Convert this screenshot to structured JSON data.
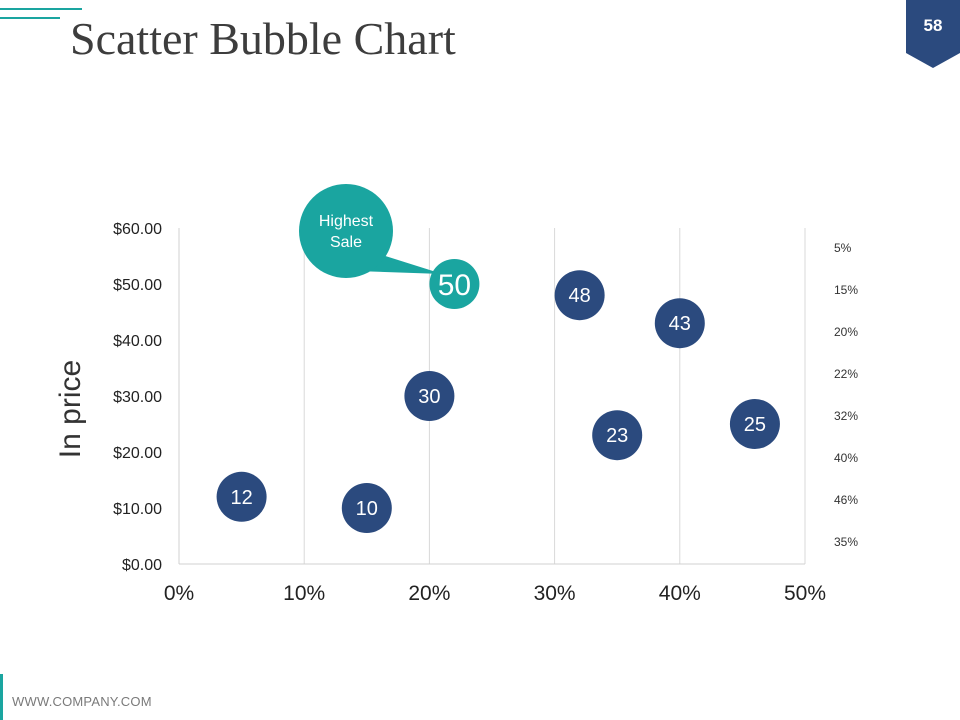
{
  "slide": {
    "title": "Scatter Bubble Chart",
    "page_number": "58",
    "footer": "WWW.COMPANY.COM",
    "accent_color": "#1aa5a0",
    "primary_color": "#2b4a7e"
  },
  "chart_data": {
    "type": "scatter",
    "title": "",
    "xlabel": "",
    "ylabel": "In price",
    "xlim": [
      0,
      50
    ],
    "ylim": [
      0,
      60
    ],
    "x_ticks": [
      0,
      10,
      20,
      30,
      40,
      50
    ],
    "x_tick_labels": [
      "0%",
      "10%",
      "20%",
      "30%",
      "40%",
      "50%"
    ],
    "y_ticks": [
      0,
      10,
      20,
      30,
      40,
      50,
      60
    ],
    "y_tick_labels": [
      "$0.00",
      "$10.00",
      "$20.00",
      "$30.00",
      "$40.00",
      "$50.00",
      "$60.00"
    ],
    "grid": "vertical",
    "points": [
      {
        "x": 5,
        "y": 12,
        "label": "12",
        "highlight": false
      },
      {
        "x": 15,
        "y": 10,
        "label": "10",
        "highlight": false
      },
      {
        "x": 20,
        "y": 30,
        "label": "30",
        "highlight": false
      },
      {
        "x": 22,
        "y": 50,
        "label": "50",
        "highlight": true
      },
      {
        "x": 32,
        "y": 48,
        "label": "48",
        "highlight": false
      },
      {
        "x": 35,
        "y": 23,
        "label": "23",
        "highlight": false
      },
      {
        "x": 40,
        "y": 43,
        "label": "43",
        "highlight": false
      },
      {
        "x": 46,
        "y": 25,
        "label": "25",
        "highlight": false
      }
    ],
    "callout": {
      "text_line1": "Highest",
      "text_line2": "Sale"
    },
    "side_labels": [
      "5%",
      "15%",
      "20%",
      "22%",
      "32%",
      "40%",
      "46%",
      "35%"
    ],
    "bubble_color": "#2b4a7e",
    "highlight_color": "#1aa5a0"
  }
}
